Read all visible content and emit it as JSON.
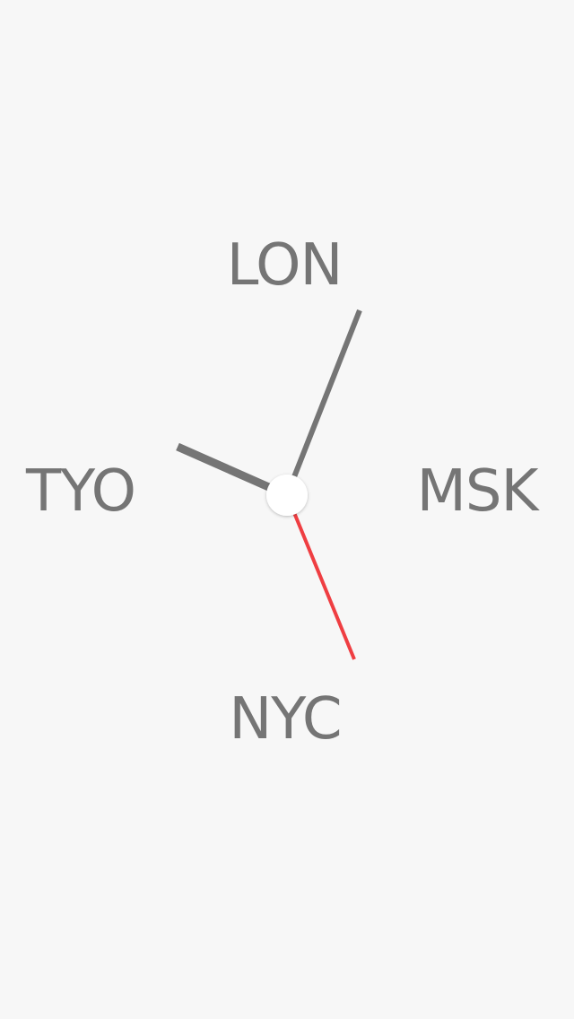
{
  "clock": {
    "cities": {
      "top": "LON",
      "left": "TYO",
      "right": "MSK",
      "bottom": "NYC"
    },
    "colors": {
      "background": "#f7f7f7",
      "label": "#757575",
      "hand": "#757575",
      "second_hand": "#ef3e42",
      "center_cap": "#ffffff"
    }
  }
}
